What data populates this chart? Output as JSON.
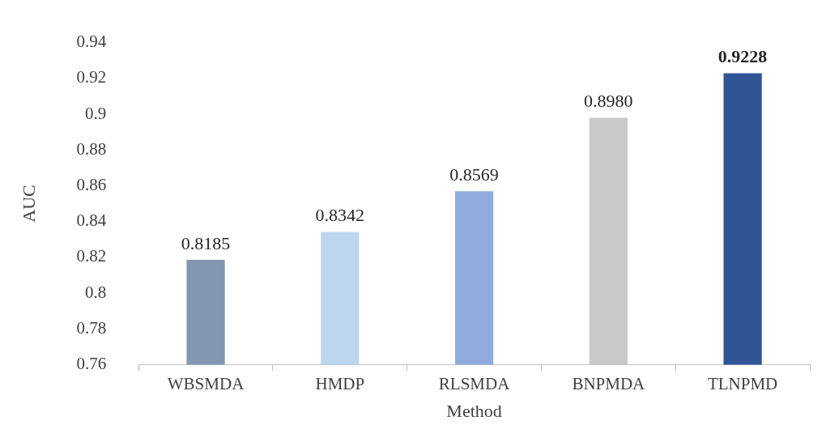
{
  "chart_data": {
    "type": "bar",
    "xlabel": "Method",
    "ylabel": "AUC",
    "categories": [
      "WBSMDA",
      "HMDP",
      "RLSMDA",
      "BNPMDA",
      "TLNPMD"
    ],
    "values": [
      0.8185,
      0.8342,
      0.8569,
      0.898,
      0.9228
    ],
    "colors": [
      "#8497b0",
      "#bdd7ee",
      "#8faadc",
      "#c9c9c9",
      "#2f5597"
    ],
    "value_labels": [
      "0.8185",
      "0.8342",
      "0.8569",
      "0.8980",
      "0.9228"
    ],
    "ylim": [
      0.76,
      0.94
    ],
    "yticks": [
      0.76,
      0.78,
      0.8,
      0.82,
      0.84,
      0.86,
      0.88,
      0.9,
      0.92,
      0.94
    ],
    "grid": false,
    "legend": false
  }
}
